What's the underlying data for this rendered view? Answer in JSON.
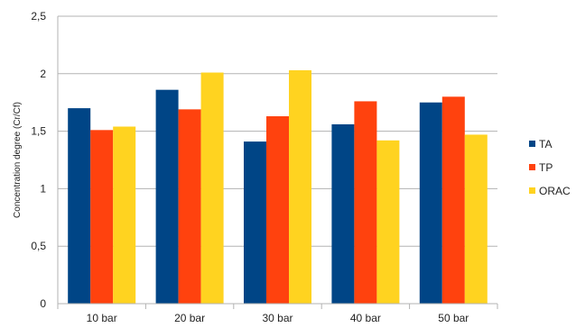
{
  "chart_data": {
    "type": "bar",
    "categories": [
      "10 bar",
      "20 bar",
      "30 bar",
      "40 bar",
      "50 bar"
    ],
    "series": [
      {
        "name": "TA",
        "color": "#004586",
        "values": [
          1.7,
          1.86,
          1.41,
          1.56,
          1.75
        ]
      },
      {
        "name": "TP",
        "color": "#FF420E",
        "values": [
          1.51,
          1.69,
          1.63,
          1.76,
          1.8
        ]
      },
      {
        "name": "ORAC",
        "color": "#FFD320",
        "values": [
          1.54,
          2.01,
          2.03,
          1.42,
          1.47
        ]
      }
    ],
    "title": "",
    "xlabel": "",
    "ylabel": "Concentration degree (Cr/Cf)",
    "ylim": [
      0,
      2.5
    ],
    "yticks": [
      "0",
      "0,5",
      "1",
      "1,5",
      "2",
      "2,5"
    ],
    "grid": "horizontal",
    "legend_position": "right"
  }
}
